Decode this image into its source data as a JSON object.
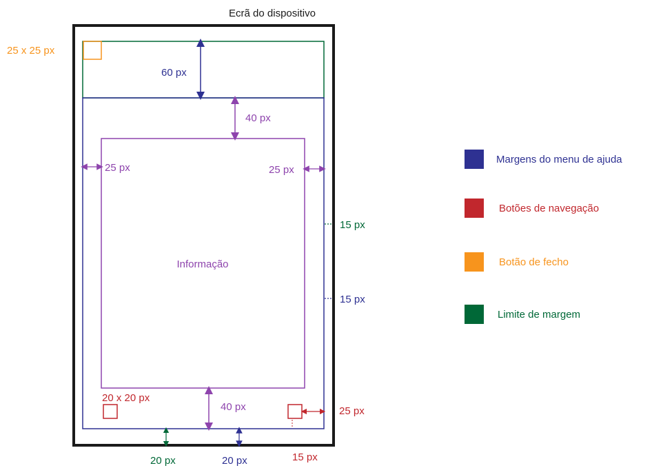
{
  "title": "Ecrã do dispositivo",
  "colors": {
    "frame": "#1a1a1a",
    "blue": "#2e3192",
    "purple": "#8e44ad",
    "red": "#c1272d",
    "orange": "#f7941d",
    "green": "#006837"
  },
  "labels": {
    "close_size": "25 x 25 px",
    "top_60": "60 px",
    "gap_40_top": "40 px",
    "left_25": "25 px",
    "right_25": "25 px",
    "green_15": "15 px",
    "info": "Informação",
    "blue_15": "15 px",
    "nav_size": "20 x 20 px",
    "gap_40_bottom": "40 px",
    "red_25": "25 px",
    "green_20": "20 px",
    "blue_20": "20 px",
    "red_15": "15 px"
  },
  "legend": [
    {
      "label": "Margens do menu de ajuda",
      "color": "#2e3192"
    },
    {
      "label": "Botões de navegação",
      "color": "#c1272d"
    },
    {
      "label": "Botão de fecho",
      "color": "#f7941d"
    },
    {
      "label": "Limite de margem",
      "color": "#006837"
    }
  ]
}
